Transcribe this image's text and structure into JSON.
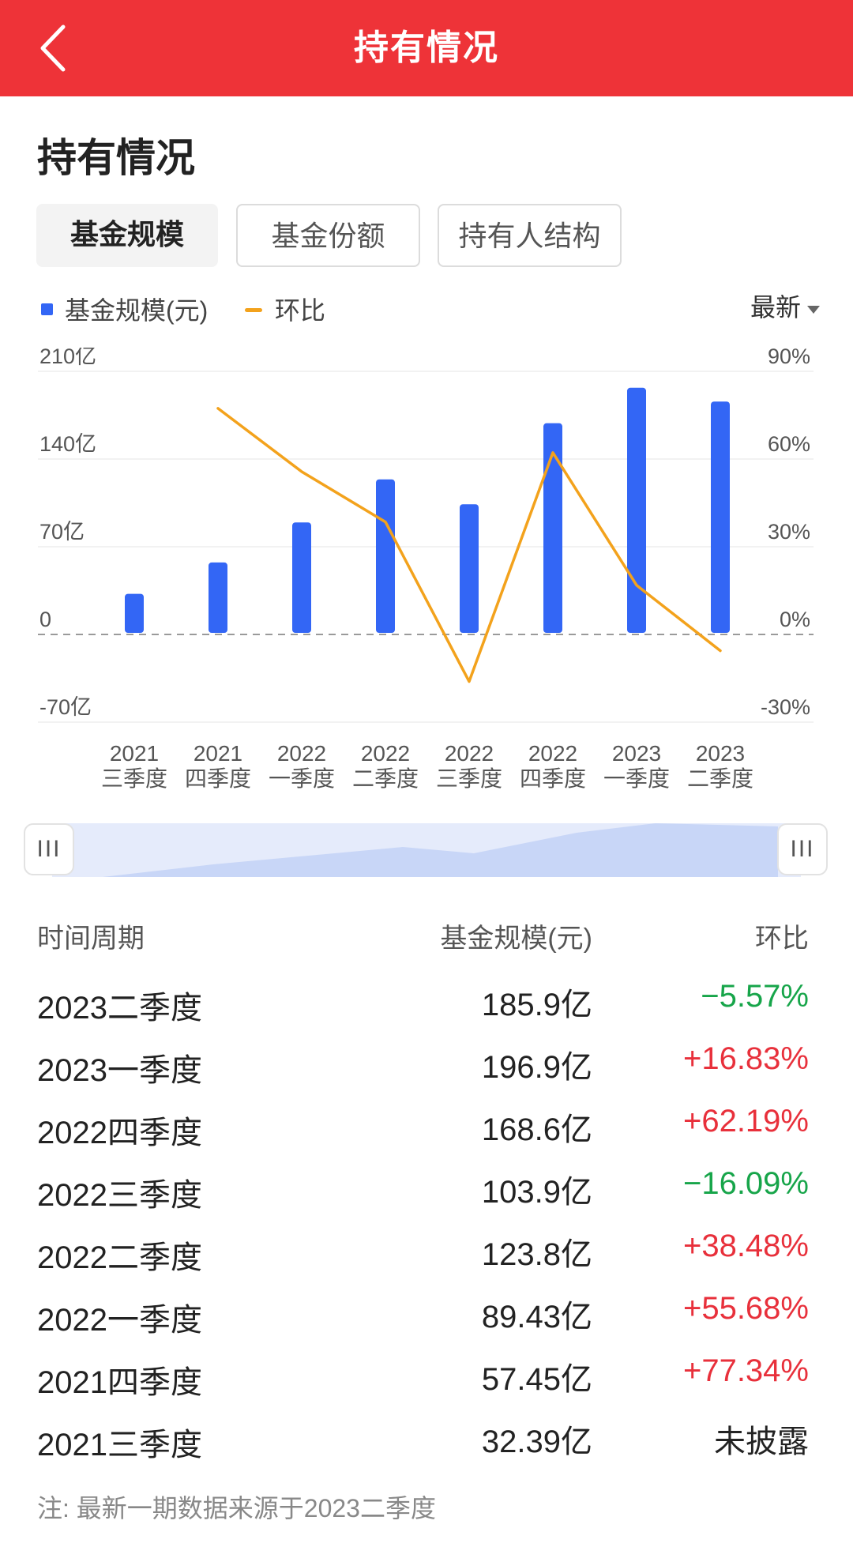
{
  "header": {
    "title": "持有情况"
  },
  "section": {
    "title": "持有情况"
  },
  "tabs": [
    {
      "label": "基金规模",
      "active": true
    },
    {
      "label": "基金份额",
      "active": false
    },
    {
      "label": "持有人结构",
      "active": false
    }
  ],
  "legend": {
    "bar_label": "基金规模(元)",
    "line_label": "环比"
  },
  "sort": {
    "label": "最新"
  },
  "colors": {
    "accent_red": "#ee3338",
    "bar_blue": "#3366f5",
    "line_orange": "#f3a21c",
    "up_red": "#e8303b",
    "down_green": "#17a54a"
  },
  "chart_data": {
    "type": "bar+line",
    "categories": [
      [
        "2021",
        "三季度"
      ],
      [
        "2021",
        "四季度"
      ],
      [
        "2022",
        "一季度"
      ],
      [
        "2022",
        "二季度"
      ],
      [
        "2022",
        "三季度"
      ],
      [
        "2022",
        "四季度"
      ],
      [
        "2023",
        "一季度"
      ],
      [
        "2023",
        "二季度"
      ]
    ],
    "series": [
      {
        "name": "基金规模(元)",
        "type": "bar",
        "axis": "left",
        "values": [
          32.39,
          57.45,
          89.43,
          123.8,
          103.9,
          168.6,
          196.9,
          185.9
        ]
      },
      {
        "name": "环比",
        "type": "line",
        "axis": "right",
        "values": [
          null,
          77.34,
          55.68,
          38.48,
          -16.09,
          62.19,
          16.83,
          -5.57
        ]
      }
    ],
    "y_left": {
      "ticks": [
        "210亿",
        "140亿",
        "70亿",
        "0",
        "-70亿"
      ],
      "ylim": [
        -70,
        210
      ]
    },
    "y_right": {
      "ticks": [
        "90%",
        "60%",
        "30%",
        "0%",
        "-30%"
      ],
      "ylim": [
        -30,
        90
      ]
    }
  },
  "table": {
    "headers": [
      "时间周期",
      "基金规模(元)",
      "环比"
    ],
    "rows": [
      {
        "period": "2023二季度",
        "scale": "185.9亿",
        "change": "−5.57%",
        "trend": "down"
      },
      {
        "period": "2023一季度",
        "scale": "196.9亿",
        "change": "+16.83%",
        "trend": "up"
      },
      {
        "period": "2022四季度",
        "scale": "168.6亿",
        "change": "+62.19%",
        "trend": "up"
      },
      {
        "period": "2022三季度",
        "scale": "103.9亿",
        "change": "−16.09%",
        "trend": "down"
      },
      {
        "period": "2022二季度",
        "scale": "123.8亿",
        "change": "+38.48%",
        "trend": "up"
      },
      {
        "period": "2022一季度",
        "scale": "89.43亿",
        "change": "+55.68%",
        "trend": "up"
      },
      {
        "period": "2021四季度",
        "scale": "57.45亿",
        "change": "+77.34%",
        "trend": "up"
      },
      {
        "period": "2021三季度",
        "scale": "32.39亿",
        "change": "未披露",
        "trend": "na"
      }
    ]
  },
  "note": "注: 最新一期数据来源于2023二季度"
}
